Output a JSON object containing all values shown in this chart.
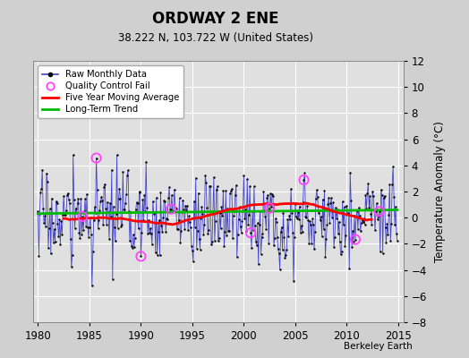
{
  "title": "ORDWAY 2 ENE",
  "subtitle": "38.222 N, 103.722 W (United States)",
  "ylabel": "Temperature Anomaly (°C)",
  "watermark": "Berkeley Earth",
  "xlim": [
    1979.5,
    2015.5
  ],
  "ylim": [
    -8,
    12
  ],
  "yticks": [
    -8,
    -6,
    -4,
    -2,
    0,
    2,
    4,
    6,
    8,
    10,
    12
  ],
  "xticks": [
    1980,
    1985,
    1990,
    1995,
    2000,
    2005,
    2010,
    2015
  ],
  "bg_color": "#d0d0d0",
  "plot_bg_color": "#e0e0e0",
  "grid_color": "white",
  "raw_line_color": "#4444cc",
  "raw_dot_color": "black",
  "qc_fail_color": "#ff44ff",
  "moving_avg_color": "red",
  "trend_color": "#00bb00",
  "long_term_trend_value": 0.45,
  "seed": 17,
  "n_points": 420,
  "start_year": 1980.0,
  "end_year": 2014.917,
  "qc_indices": [
    52,
    68,
    120,
    155,
    248,
    270,
    310,
    370,
    398
  ],
  "window": 60
}
